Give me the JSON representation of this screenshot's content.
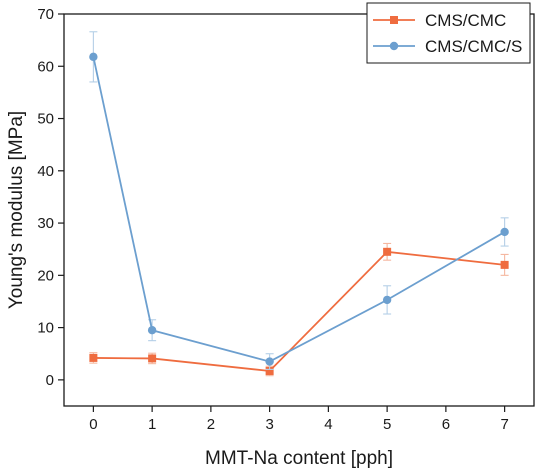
{
  "chart_data": {
    "type": "line",
    "xlabel": "MMT-Na content [pph]",
    "ylabel": "Young's modulus [MPa]",
    "xlim": [
      -0.5,
      7.5
    ],
    "ylim": [
      -5,
      70
    ],
    "xticks": [
      0,
      1,
      2,
      3,
      4,
      5,
      6,
      7
    ],
    "yticks": [
      0,
      10,
      20,
      30,
      40,
      50,
      60,
      70
    ],
    "grid": false,
    "legend_position": "top-right",
    "series": [
      {
        "name": "CMS/CMC",
        "color": "#ef6c3f",
        "marker": "square",
        "x": [
          0,
          1,
          3,
          5,
          7
        ],
        "y": [
          4.2,
          4.1,
          1.7,
          24.5,
          22.0
        ],
        "error": [
          1.0,
          1.0,
          0.9,
          1.6,
          2.0
        ]
      },
      {
        "name": "CMS/CMC/S",
        "color": "#6c9fcf",
        "marker": "circle",
        "x": [
          0,
          1,
          3,
          5,
          7
        ],
        "y": [
          61.8,
          9.5,
          3.5,
          15.3,
          28.3
        ],
        "error": [
          4.8,
          2.0,
          1.5,
          2.7,
          2.7
        ]
      }
    ]
  }
}
